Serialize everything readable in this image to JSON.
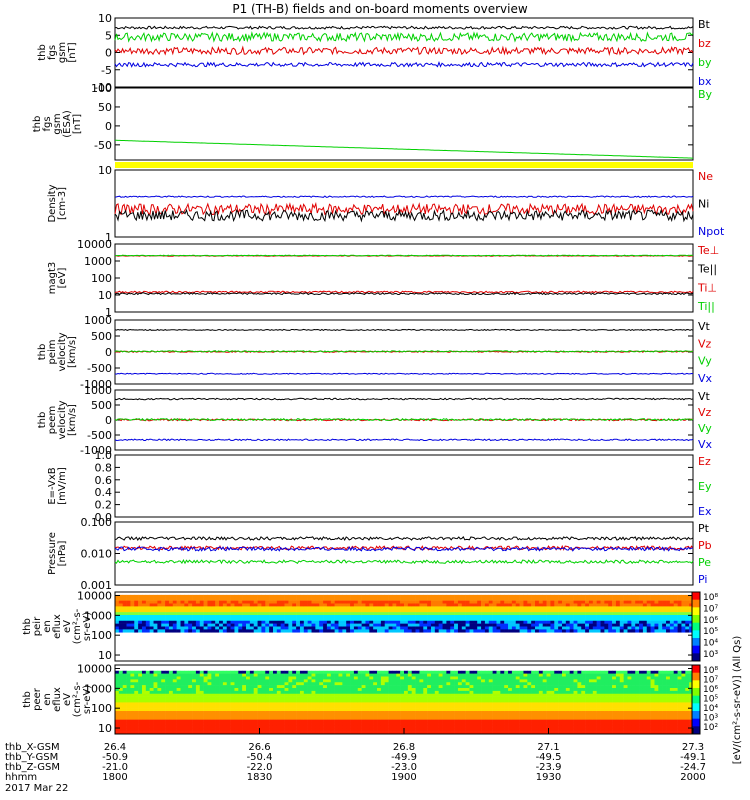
{
  "title": "P1 (TH-B) fields and on-board moments overview",
  "colors": {
    "black": "#000000",
    "red": "#e00000",
    "green": "#00d000",
    "blue": "#0000e0",
    "yellow": "#ffff00"
  },
  "chart_data": [
    {
      "type": "line",
      "ylabel": [
        "thb",
        "fgs",
        "gsm",
        "[nT]"
      ],
      "yticks": [
        "10",
        "5",
        "0",
        "-5",
        "-10"
      ],
      "ylim": [
        -10,
        10
      ],
      "series": [
        {
          "name": "Bt",
          "color": "black",
          "base": 7.2,
          "noise": 0.4
        },
        {
          "name": "bz",
          "color": "red",
          "base": 0.5,
          "noise": 1.0
        },
        {
          "name": "by",
          "color": "green",
          "base": 4.5,
          "noise": 1.2
        },
        {
          "name": "bx",
          "color": "blue",
          "base": -3.5,
          "noise": 0.6
        }
      ]
    },
    {
      "type": "line",
      "ylabel": [
        "thb",
        "fgs",
        "gsm",
        "(ESA)",
        "[nT]"
      ],
      "yticks": [
        "100",
        "50",
        "0",
        "-50"
      ],
      "ylim": [
        -90,
        100
      ],
      "series": [
        {
          "name": "By",
          "color": "green",
          "start": -38,
          "end": -85,
          "noise": 0.3
        }
      ]
    },
    {
      "type": "line",
      "scale": "log",
      "ylabel": [
        "Density",
        "[cm-3]"
      ],
      "yticks": [
        "10",
        "1"
      ],
      "ylim": [
        1,
        10
      ],
      "series": [
        {
          "name": "Ne",
          "color": "red",
          "base": 2.6,
          "noise": 0.08
        },
        {
          "name": "Ni",
          "color": "black",
          "base": 2.1,
          "noise": 0.08
        },
        {
          "name": "Npot",
          "color": "blue",
          "base": 4.0,
          "noise": 0.01
        }
      ]
    },
    {
      "type": "line",
      "scale": "log",
      "ylabel": [
        "magt3",
        "[eV]"
      ],
      "yticks": [
        "10000",
        "1000",
        "100",
        "10",
        "1"
      ],
      "ylim": [
        1,
        10000
      ],
      "series": [
        {
          "name": "Te⊥",
          "color": "red",
          "base": 15,
          "noise": 0.05
        },
        {
          "name": "Te||",
          "color": "black",
          "base": 12,
          "noise": 0.05
        },
        {
          "name": "Ti⊥",
          "color": "red",
          "base": 2000,
          "noise": 0.02
        },
        {
          "name": "Ti||",
          "color": "green",
          "base": 2100,
          "noise": 0.02
        }
      ]
    },
    {
      "type": "line",
      "ylabel": [
        "thb",
        "peim",
        "velocity",
        "[km/s]"
      ],
      "yticks": [
        "1000",
        "500",
        "0",
        "-500",
        "-1000"
      ],
      "ylim": [
        -1000,
        1000
      ],
      "series": [
        {
          "name": "Vt",
          "color": "black",
          "base": 690,
          "noise": 15
        },
        {
          "name": "Vz",
          "color": "red",
          "base": 10,
          "noise": 20
        },
        {
          "name": "Vy",
          "color": "green",
          "base": 20,
          "noise": 20
        },
        {
          "name": "Vx",
          "color": "blue",
          "base": -680,
          "noise": 15
        }
      ]
    },
    {
      "type": "line",
      "ylabel": [
        "thb",
        "peem",
        "velocity",
        "[km/s]"
      ],
      "yticks": [
        "1000",
        "500",
        "0",
        "-500",
        "-1000"
      ],
      "ylim": [
        -1000,
        1000
      ],
      "series": [
        {
          "name": "Vt",
          "color": "black",
          "base": 700,
          "noise": 25
        },
        {
          "name": "Vz",
          "color": "red",
          "base": 5,
          "noise": 30
        },
        {
          "name": "Vy",
          "color": "green",
          "base": 15,
          "noise": 30
        },
        {
          "name": "Vx",
          "color": "blue",
          "base": -660,
          "noise": 25
        }
      ]
    },
    {
      "type": "line",
      "ylabel": [
        "E=-VxB",
        "[mV/m]"
      ],
      "yticks": [
        "1.0",
        "0.8",
        "0.6",
        "0.4",
        "0.2",
        "0.0"
      ],
      "ylim": [
        0,
        1
      ],
      "series": [
        {
          "name": "Ez",
          "color": "red"
        },
        {
          "name": "Ey",
          "color": "green"
        },
        {
          "name": "Ex",
          "color": "blue"
        }
      ]
    },
    {
      "type": "line",
      "scale": "log",
      "ylabel": [
        "Pressure",
        "[nPa]"
      ],
      "yticks": [
        "0.100",
        "0.010",
        "0.001"
      ],
      "ylim": [
        0.001,
        0.1
      ],
      "series": [
        {
          "name": "Pt",
          "color": "black",
          "base": 0.03,
          "noise": 0.05
        },
        {
          "name": "Pb",
          "color": "red",
          "base": 0.015,
          "noise": 0.06
        },
        {
          "name": "Pe",
          "color": "green",
          "base": 0.0055,
          "noise": 0.05
        },
        {
          "name": "Pi",
          "color": "blue",
          "base": 0.014,
          "noise": 0.06
        }
      ]
    },
    {
      "type": "heatmap",
      "ylabel": [
        "thb",
        "peir",
        "en",
        "eflux",
        "eV",
        "(cm²-s-",
        "sr-eV)"
      ],
      "yticks": [
        "10000",
        "1000",
        "100",
        "10"
      ],
      "ylim": [
        5,
        15000
      ],
      "colorbar_ticks": [
        "10⁸",
        "10⁷",
        "10⁶",
        "10⁵",
        "10⁴",
        "10³"
      ]
    },
    {
      "type": "heatmap",
      "ylabel": [
        "thb",
        "peer",
        "en",
        "eflux",
        "eV",
        "(cm²-s-",
        "sr-eV)"
      ],
      "yticks": [
        "10000",
        "1000",
        "100",
        "10"
      ],
      "ylim": [
        5,
        15000
      ],
      "colorbar_ticks": [
        "10⁸",
        "10⁷",
        "10⁶",
        "10⁵",
        "10⁴",
        "10³",
        "10²"
      ]
    }
  ],
  "colorbar_label": "[eV/(cm²-s-sr-eV)] (All Qs)",
  "xaxis": {
    "rows": [
      {
        "label": "thb_X-GSM",
        "values": [
          "26.4",
          "26.6",
          "26.8",
          "27.1",
          "27.3"
        ]
      },
      {
        "label": "thb_Y-GSM",
        "values": [
          "-50.9",
          "-50.4",
          "-49.9",
          "-49.5",
          "-49.1"
        ]
      },
      {
        "label": "thb_Z-GSM",
        "values": [
          "-21.0",
          "-22.0",
          "-23.0",
          "-23.9",
          "-24.7"
        ]
      },
      {
        "label": "hhmm",
        "values": [
          "1800",
          "1830",
          "1900",
          "1930",
          "2000"
        ]
      }
    ],
    "date": "2017 Mar 22"
  }
}
